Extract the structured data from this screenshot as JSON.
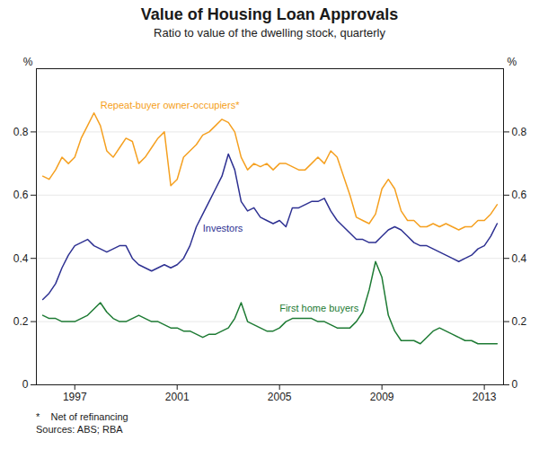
{
  "chart_data": {
    "type": "line",
    "title": "Value of Housing Loan Approvals",
    "subtitle": "Ratio to value of the dwelling stock, quarterly",
    "ylabel": "%",
    "y2label": "%",
    "footnotes": [
      "*    Net of refinancing",
      "Sources: ABS; RBA"
    ],
    "xlim": [
      1995.5,
      2013.75
    ],
    "xticks": [
      1997,
      2001,
      2005,
      2009,
      2013
    ],
    "ylim": [
      0,
      1.0
    ],
    "yticks": [
      0,
      0.2,
      0.4,
      0.6,
      0.8
    ],
    "y2lim": [
      0,
      1.0
    ],
    "y2ticks": [
      0,
      0.2,
      0.4,
      0.6,
      0.8
    ],
    "grid": "y",
    "x": [
      1995.75,
      1996.0,
      1996.25,
      1996.5,
      1996.75,
      1997.0,
      1997.25,
      1997.5,
      1997.75,
      1998.0,
      1998.25,
      1998.5,
      1998.75,
      1999.0,
      1999.25,
      1999.5,
      1999.75,
      2000.0,
      2000.25,
      2000.5,
      2000.75,
      2001.0,
      2001.25,
      2001.5,
      2001.75,
      2002.0,
      2002.25,
      2002.5,
      2002.75,
      2003.0,
      2003.25,
      2003.5,
      2003.75,
      2004.0,
      2004.25,
      2004.5,
      2004.75,
      2005.0,
      2005.25,
      2005.5,
      2005.75,
      2006.0,
      2006.25,
      2006.5,
      2006.75,
      2007.0,
      2007.25,
      2007.5,
      2007.75,
      2008.0,
      2008.25,
      2008.5,
      2008.75,
      2009.0,
      2009.25,
      2009.5,
      2009.75,
      2010.0,
      2010.25,
      2010.5,
      2010.75,
      2011.0,
      2011.25,
      2011.5,
      2011.75,
      2012.0,
      2012.25,
      2012.5,
      2012.75,
      2013.0,
      2013.25,
      2013.5
    ],
    "series": [
      {
        "name": "Repeat-buyer owner-occupiers*",
        "color": "#f5a020",
        "values": [
          0.66,
          0.65,
          0.68,
          0.72,
          0.7,
          0.72,
          0.78,
          0.82,
          0.86,
          0.82,
          0.74,
          0.72,
          0.75,
          0.78,
          0.77,
          0.7,
          0.72,
          0.75,
          0.78,
          0.8,
          0.63,
          0.65,
          0.72,
          0.74,
          0.76,
          0.79,
          0.8,
          0.82,
          0.84,
          0.83,
          0.8,
          0.72,
          0.68,
          0.7,
          0.69,
          0.7,
          0.68,
          0.7,
          0.7,
          0.69,
          0.68,
          0.68,
          0.7,
          0.72,
          0.7,
          0.74,
          0.72,
          0.66,
          0.6,
          0.53,
          0.52,
          0.51,
          0.54,
          0.62,
          0.65,
          0.62,
          0.55,
          0.52,
          0.52,
          0.5,
          0.5,
          0.51,
          0.5,
          0.51,
          0.5,
          0.49,
          0.5,
          0.5,
          0.52,
          0.52,
          0.54,
          0.57
        ]
      },
      {
        "name": "Investors",
        "color": "#2e3192",
        "values": [
          0.27,
          0.29,
          0.32,
          0.37,
          0.41,
          0.44,
          0.45,
          0.46,
          0.44,
          0.43,
          0.42,
          0.43,
          0.44,
          0.44,
          0.4,
          0.38,
          0.37,
          0.36,
          0.37,
          0.38,
          0.37,
          0.38,
          0.4,
          0.44,
          0.5,
          0.54,
          0.58,
          0.62,
          0.66,
          0.73,
          0.68,
          0.58,
          0.55,
          0.56,
          0.53,
          0.52,
          0.51,
          0.52,
          0.5,
          0.56,
          0.56,
          0.57,
          0.58,
          0.58,
          0.59,
          0.55,
          0.52,
          0.5,
          0.48,
          0.46,
          0.46,
          0.45,
          0.45,
          0.47,
          0.49,
          0.5,
          0.49,
          0.47,
          0.45,
          0.44,
          0.44,
          0.43,
          0.42,
          0.41,
          0.4,
          0.39,
          0.4,
          0.41,
          0.43,
          0.44,
          0.47,
          0.51
        ]
      },
      {
        "name": "First home buyers",
        "color": "#1e7b34",
        "values": [
          0.22,
          0.21,
          0.21,
          0.2,
          0.2,
          0.2,
          0.21,
          0.22,
          0.24,
          0.26,
          0.23,
          0.21,
          0.2,
          0.2,
          0.21,
          0.22,
          0.21,
          0.2,
          0.2,
          0.19,
          0.18,
          0.18,
          0.17,
          0.17,
          0.16,
          0.15,
          0.16,
          0.16,
          0.17,
          0.18,
          0.21,
          0.26,
          0.2,
          0.19,
          0.18,
          0.17,
          0.17,
          0.18,
          0.2,
          0.21,
          0.21,
          0.21,
          0.21,
          0.2,
          0.2,
          0.19,
          0.18,
          0.18,
          0.18,
          0.2,
          0.23,
          0.3,
          0.39,
          0.34,
          0.22,
          0.17,
          0.14,
          0.14,
          0.14,
          0.13,
          0.15,
          0.17,
          0.18,
          0.17,
          0.16,
          0.15,
          0.14,
          0.14,
          0.13,
          0.13,
          0.13,
          0.13
        ]
      }
    ]
  }
}
